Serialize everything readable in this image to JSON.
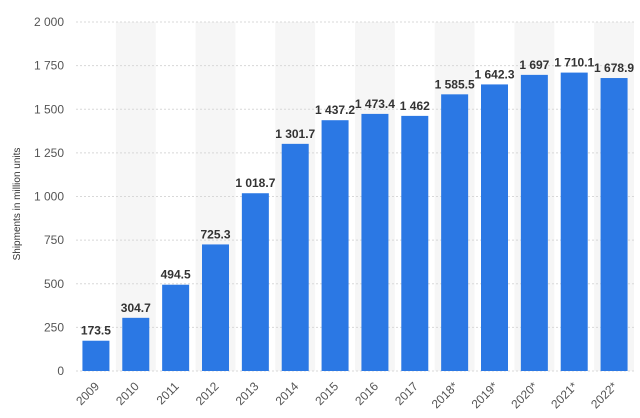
{
  "chart_data": {
    "type": "bar",
    "ylabel": "Shipments in million units",
    "xlabel": "",
    "title": "",
    "ylim": [
      0,
      2000
    ],
    "yticks": [
      0,
      250,
      500,
      750,
      1000,
      1250,
      1500,
      1750,
      2000
    ],
    "ytick_labels": [
      "0",
      "250",
      "500",
      "750",
      "1 000",
      "1 250",
      "1 500",
      "1 750",
      "2 000"
    ],
    "categories": [
      "2009",
      "2010",
      "2011",
      "2012",
      "2013",
      "2014",
      "2015",
      "2016",
      "2017",
      "2018*",
      "2019*",
      "2020*",
      "2021*",
      "2022*"
    ],
    "values": [
      173.5,
      304.7,
      494.5,
      725.3,
      1018.7,
      1301.7,
      1437.2,
      1473.4,
      1462,
      1585.5,
      1642.3,
      1697,
      1710.1,
      1678.9
    ],
    "value_labels": [
      "173.5",
      "304.7",
      "494.5",
      "725.3",
      "1 018.7",
      "1 301.7",
      "1 437.2",
      "1 473.4",
      "1 462",
      "1 585.5",
      "1 642.3",
      "1 697",
      "1 710.1",
      "1 678.9"
    ],
    "bar_color": "#2b78e4",
    "grid": true,
    "legend": "none"
  }
}
